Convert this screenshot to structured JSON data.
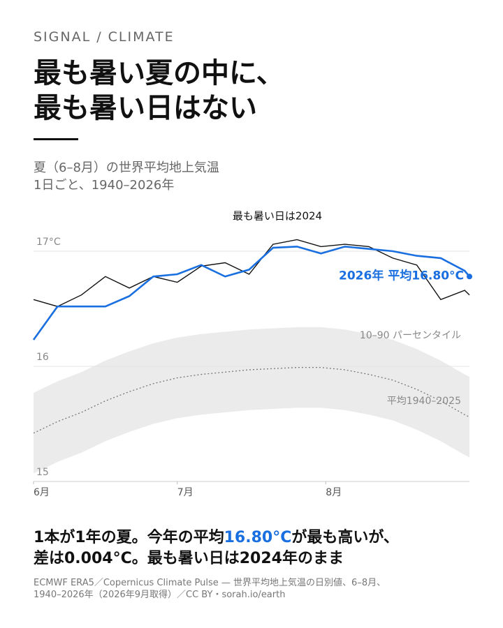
{
  "header": {
    "kicker": "SIGNAL / CLIMATE",
    "title": [
      "最も暑い夏の中に、",
      "最も暑い日はない"
    ],
    "subtitle": [
      "夏（6–8月）の世界平均地上気温",
      "1日ごと、1940–2026年"
    ]
  },
  "chart_data": {
    "type": "line",
    "title": "最も暑い日は2024",
    "x": [
      0,
      5,
      10,
      15,
      20,
      25,
      30,
      35,
      40,
      45,
      50,
      55,
      60,
      65,
      70,
      75,
      80,
      85,
      90,
      91
    ],
    "xlim": [
      0,
      91
    ],
    "xticks": [
      {
        "value": 0,
        "label": "6月"
      },
      {
        "value": 30,
        "label": "7月"
      },
      {
        "value": 61,
        "label": "8月"
      }
    ],
    "ylim": [
      15,
      17.2
    ],
    "yticks": [
      {
        "value": 15,
        "label": "15"
      },
      {
        "value": 16,
        "label": "16"
      },
      {
        "value": 17,
        "label": "17°C"
      }
    ],
    "grid": true,
    "band": {
      "name": "10–90 パーセンタイル",
      "color": "#ebebeb",
      "lower": [
        15.07,
        15.17,
        15.25,
        15.35,
        15.43,
        15.5,
        15.55,
        15.58,
        15.6,
        15.62,
        15.63,
        15.64,
        15.64,
        15.62,
        15.58,
        15.53,
        15.45,
        15.35,
        15.23,
        15.21
      ],
      "upper": [
        15.77,
        15.87,
        15.95,
        16.05,
        16.13,
        16.2,
        16.25,
        16.28,
        16.3,
        16.32,
        16.33,
        16.34,
        16.34,
        16.32,
        16.28,
        16.23,
        16.15,
        16.05,
        15.93,
        15.91
      ]
    },
    "series": [
      {
        "name": "平均1940–2025",
        "color": "#777777",
        "dash": true,
        "values": [
          15.42,
          15.52,
          15.6,
          15.7,
          15.78,
          15.85,
          15.9,
          15.93,
          15.95,
          15.97,
          15.98,
          15.99,
          15.99,
          15.97,
          15.93,
          15.88,
          15.8,
          15.7,
          15.58,
          15.56
        ]
      },
      {
        "name": "2024",
        "color": "#111111",
        "values": [
          16.58,
          16.52,
          16.62,
          16.78,
          16.68,
          16.78,
          16.73,
          16.87,
          16.9,
          16.8,
          17.06,
          17.1,
          17.04,
          17.06,
          17.04,
          16.94,
          16.88,
          16.58,
          16.66,
          16.62
        ]
      },
      {
        "name": "2026年 平均16.80°C",
        "color": "#1a6fe0",
        "values": [
          16.23,
          16.52,
          16.52,
          16.52,
          16.61,
          16.78,
          16.8,
          16.88,
          16.78,
          16.84,
          17.03,
          17.04,
          16.98,
          17.04,
          17.02,
          17.0,
          16.96,
          16.94,
          16.83,
          16.78
        ]
      }
    ]
  },
  "footer": {
    "note": [
      "1本が1年の夏。今年の平均",
      "16.80°C",
      "が最も高いが、",
      "差は0.004°C。最も暑い日は2024年のまま"
    ],
    "source": [
      "ECMWF ERA5／Copernicus Climate Pulse — 世界平均地上気温の日別値、6–8月、",
      "1940–2026年（2026年9月取得）／CC BY・sorah.io/earth"
    ]
  }
}
